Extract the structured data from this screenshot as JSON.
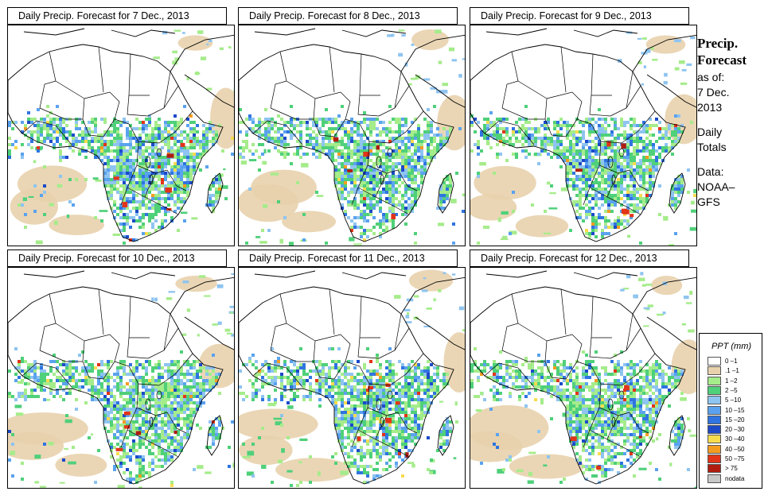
{
  "panels": [
    {
      "title": "Daily Precip. Forecast for  7 Dec., 2013",
      "seed": 7
    },
    {
      "title": "Daily Precip. Forecast for  8 Dec., 2013",
      "seed": 8
    },
    {
      "title": "Daily Precip. Forecast for  9 Dec., 2013",
      "seed": 9
    },
    {
      "title": "Daily Precip. Forecast for  10 Dec., 2013",
      "seed": 10
    },
    {
      "title": "Daily Precip. Forecast for  11 Dec., 2013",
      "seed": 11
    },
    {
      "title": "Daily Precip. Forecast for  12 Dec., 2013",
      "seed": 12
    }
  ],
  "side": {
    "head1": "Precip.",
    "head2": "Forecast",
    "as_of": "as of:",
    "date1": "7 Dec.",
    "date2": "2013",
    "daily1": "Daily",
    "daily2": "Totals",
    "data1": "Data:",
    "data2": "NOAA–",
    "data3": "GFS"
  },
  "legend": {
    "title": "PPT (mm)",
    "items": [
      {
        "label": "0 –1",
        "color": "#ffffff"
      },
      {
        "label": ".1 –1",
        "color": "#e8d2ad"
      },
      {
        "label": "1 –2",
        "color": "#a5ec8b"
      },
      {
        "label": "2 –5",
        "color": "#4fd07a"
      },
      {
        "label": "5 –10",
        "color": "#8ec4f0"
      },
      {
        "label": "10 –15",
        "color": "#5aa2ee"
      },
      {
        "label": "15 –20",
        "color": "#2f74e0"
      },
      {
        "label": "20 –30",
        "color": "#1c4ac8"
      },
      {
        "label": "30 –40",
        "color": "#f7dc4e"
      },
      {
        "label": "40 –50",
        "color": "#f39c22"
      },
      {
        "label": "50 –75",
        "color": "#e23418"
      },
      {
        "label": "> 75",
        "color": "#b01c10"
      },
      {
        "label": "nodata",
        "color": "#c8c8c8"
      }
    ]
  }
}
